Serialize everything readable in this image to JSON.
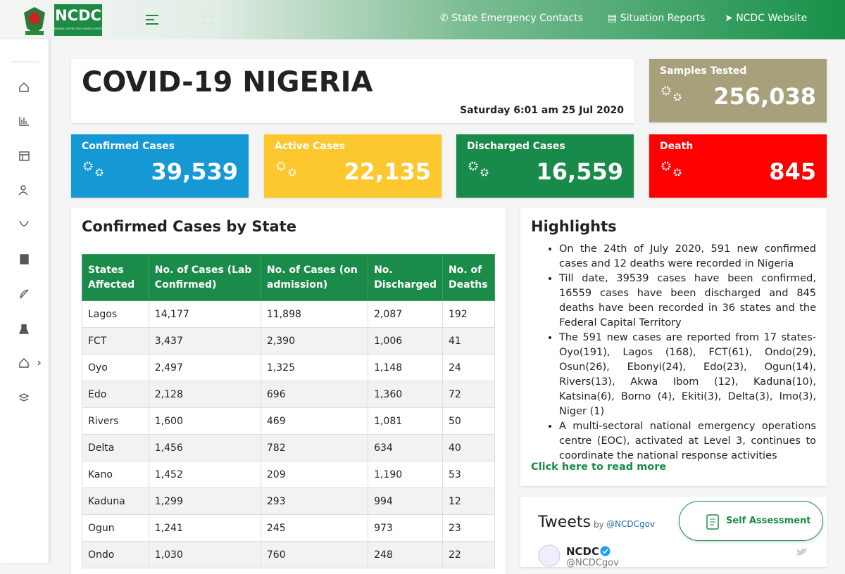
{
  "header": {
    "logo_text": "NCDC",
    "logo_subtitle": "NIGERIA CENTRE FOR DISEASE CONTROL",
    "nav": [
      "State Emergency Contacts",
      "Situation Reports",
      "NCDC Website"
    ]
  },
  "title": "COVID-19 NIGERIA",
  "date": "Saturday 6:01 am 25 Jul 2020",
  "stats": [
    {
      "label": "Samples Tested",
      "value": "256,038"
    },
    {
      "label": "Confirmed Cases",
      "value": "39,539"
    },
    {
      "label": "Active Cases",
      "value": "22,135"
    },
    {
      "label": "Discharged Cases",
      "value": "16,559"
    },
    {
      "label": "Death",
      "value": "845"
    }
  ],
  "table": {
    "title": "Confirmed Cases by State",
    "headers": [
      "States Affected",
      "No. of Cases (Lab Confirmed)",
      "No. of Cases (on admission)",
      "No. Discharged",
      "No. of Deaths"
    ],
    "rows": [
      [
        "Lagos",
        "14,177",
        "11,898",
        "2,087",
        "192"
      ],
      [
        "FCT",
        "3,437",
        "2,390",
        "1,006",
        "41"
      ],
      [
        "Oyo",
        "2,497",
        "1,325",
        "1,148",
        "24"
      ],
      [
        "Edo",
        "2,128",
        "696",
        "1,360",
        "72"
      ],
      [
        "Rivers",
        "1,600",
        "469",
        "1,081",
        "50"
      ],
      [
        "Delta",
        "1,456",
        "782",
        "634",
        "40"
      ],
      [
        "Kano",
        "1,452",
        "209",
        "1,190",
        "53"
      ],
      [
        "Kaduna",
        "1,299",
        "293",
        "994",
        "12"
      ],
      [
        "Ogun",
        "1,241",
        "245",
        "973",
        "23"
      ],
      [
        "Ondo",
        "1,030",
        "760",
        "248",
        "22"
      ]
    ]
  },
  "highlights": {
    "title": "Highlights",
    "items": [
      "On the 24th of July 2020, 591 new confirmed cases and 12 deaths were recorded in Nigeria",
      "Till date, 39539 cases have been confirmed, 16559 cases have been discharged and 845 deaths have been recorded in 36 states and the Federal Capital Territory",
      "The 591 new cases are reported from 17 states- Oyo(191), Lagos (168), FCT(61), Ondo(29), Osun(26), Ebonyi(24), Edo(23), Ogun(14), Rivers(13), Akwa Ibom (12), Kaduna(10), Katsina(6), Borno (4), Ekiti(3), Delta(3), Imo(3), Niger (1)",
      "A multi-sectoral national emergency operations centre (EOC), activated at Level 3, continues to coordinate the national response activities"
    ],
    "link": "Click here to read more"
  },
  "tweets": {
    "title": "Tweets",
    "by": "by",
    "handle": "@NCDCgov",
    "account_name": "NCDC",
    "account_handle": "@NCDCgov"
  },
  "self_assessment": "Self Assessment"
}
